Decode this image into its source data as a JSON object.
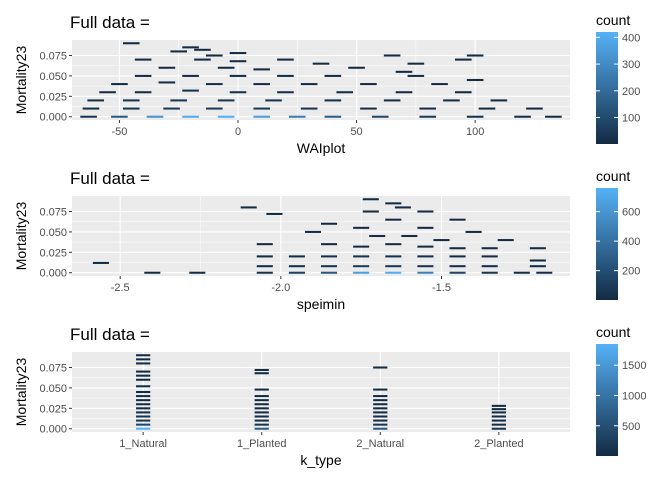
{
  "chart_data": [
    {
      "type": "heatmap",
      "title": "Full data =",
      "xlabel": "WAIplot",
      "ylabel": "Mortality23",
      "xlim": [
        -70,
        140
      ],
      "ylim": [
        -0.004,
        0.094
      ],
      "xticks": [
        -50,
        0,
        50,
        100
      ],
      "xtick_labels": [
        "-50",
        "0",
        "50",
        "100"
      ],
      "yticks": [
        0.0,
        0.025,
        0.05,
        0.075
      ],
      "ytick_labels": [
        "0.000",
        "0.025",
        "0.050",
        "0.075"
      ],
      "legend": {
        "title": "count",
        "min": 1,
        "max": 420,
        "ticks": [
          100,
          200,
          300,
          400
        ],
        "tick_labels": [
          "100",
          "200",
          "300",
          "400"
        ],
        "placement": "right"
      },
      "bin_width": 7,
      "bin_height": 0.0025,
      "cells": [
        {
          "x": -45,
          "y": 0.09,
          "count": 2
        },
        {
          "x": -20,
          "y": 0.085,
          "count": 2
        },
        {
          "x": -15,
          "y": 0.082,
          "count": 3
        },
        {
          "x": -25,
          "y": 0.08,
          "count": 2
        },
        {
          "x": -10,
          "y": 0.075,
          "count": 3
        },
        {
          "x": 0,
          "y": 0.078,
          "count": 2
        },
        {
          "x": -40,
          "y": 0.07,
          "count": 2
        },
        {
          "x": -15,
          "y": 0.07,
          "count": 3
        },
        {
          "x": 0,
          "y": 0.068,
          "count": 2
        },
        {
          "x": 20,
          "y": 0.07,
          "count": 2
        },
        {
          "x": 35,
          "y": 0.065,
          "count": 2
        },
        {
          "x": 65,
          "y": 0.075,
          "count": 2
        },
        {
          "x": 75,
          "y": 0.065,
          "count": 2
        },
        {
          "x": 95,
          "y": 0.07,
          "count": 2
        },
        {
          "x": 100,
          "y": 0.075,
          "count": 2
        },
        {
          "x": -30,
          "y": 0.06,
          "count": 4
        },
        {
          "x": -5,
          "y": 0.06,
          "count": 5
        },
        {
          "x": 10,
          "y": 0.058,
          "count": 3
        },
        {
          "x": 50,
          "y": 0.06,
          "count": 3
        },
        {
          "x": 70,
          "y": 0.055,
          "count": 2
        },
        {
          "x": -40,
          "y": 0.05,
          "count": 5
        },
        {
          "x": -20,
          "y": 0.05,
          "count": 8
        },
        {
          "x": 0,
          "y": 0.05,
          "count": 10
        },
        {
          "x": 20,
          "y": 0.05,
          "count": 6
        },
        {
          "x": 40,
          "y": 0.05,
          "count": 4
        },
        {
          "x": 75,
          "y": 0.05,
          "count": 3
        },
        {
          "x": 100,
          "y": 0.045,
          "count": 2
        },
        {
          "x": -50,
          "y": 0.04,
          "count": 4
        },
        {
          "x": -30,
          "y": 0.042,
          "count": 10
        },
        {
          "x": -10,
          "y": 0.04,
          "count": 15
        },
        {
          "x": 10,
          "y": 0.04,
          "count": 12
        },
        {
          "x": 30,
          "y": 0.04,
          "count": 8
        },
        {
          "x": 55,
          "y": 0.04,
          "count": 5
        },
        {
          "x": 85,
          "y": 0.04,
          "count": 3
        },
        {
          "x": -55,
          "y": 0.03,
          "count": 8
        },
        {
          "x": -40,
          "y": 0.03,
          "count": 15
        },
        {
          "x": -20,
          "y": 0.032,
          "count": 20
        },
        {
          "x": 0,
          "y": 0.03,
          "count": 25
        },
        {
          "x": 20,
          "y": 0.03,
          "count": 18
        },
        {
          "x": 45,
          "y": 0.03,
          "count": 10
        },
        {
          "x": 70,
          "y": 0.03,
          "count": 6
        },
        {
          "x": 95,
          "y": 0.03,
          "count": 3
        },
        {
          "x": -60,
          "y": 0.02,
          "count": 10
        },
        {
          "x": -45,
          "y": 0.02,
          "count": 25
        },
        {
          "x": -25,
          "y": 0.02,
          "count": 35
        },
        {
          "x": -5,
          "y": 0.02,
          "count": 40
        },
        {
          "x": 15,
          "y": 0.02,
          "count": 30
        },
        {
          "x": 40,
          "y": 0.02,
          "count": 18
        },
        {
          "x": 65,
          "y": 0.02,
          "count": 10
        },
        {
          "x": 90,
          "y": 0.02,
          "count": 5
        },
        {
          "x": 110,
          "y": 0.02,
          "count": 3
        },
        {
          "x": -62,
          "y": 0.01,
          "count": 15
        },
        {
          "x": -45,
          "y": 0.01,
          "count": 40
        },
        {
          "x": -28,
          "y": 0.01,
          "count": 55
        },
        {
          "x": -10,
          "y": 0.01,
          "count": 60
        },
        {
          "x": 10,
          "y": 0.01,
          "count": 50
        },
        {
          "x": 30,
          "y": 0.01,
          "count": 35
        },
        {
          "x": 55,
          "y": 0.01,
          "count": 20
        },
        {
          "x": 80,
          "y": 0.01,
          "count": 12
        },
        {
          "x": 105,
          "y": 0.01,
          "count": 6
        },
        {
          "x": 125,
          "y": 0.01,
          "count": 3
        },
        {
          "x": -63,
          "y": 0.0,
          "count": 40
        },
        {
          "x": -50,
          "y": 0.0,
          "count": 150
        },
        {
          "x": -35,
          "y": 0.0,
          "count": 330
        },
        {
          "x": -20,
          "y": 0.0,
          "count": 400
        },
        {
          "x": -5,
          "y": 0.0,
          "count": 410
        },
        {
          "x": 10,
          "y": 0.0,
          "count": 360
        },
        {
          "x": 25,
          "y": 0.0,
          "count": 260
        },
        {
          "x": 40,
          "y": 0.0,
          "count": 160
        },
        {
          "x": 60,
          "y": 0.0,
          "count": 90
        },
        {
          "x": 80,
          "y": 0.0,
          "count": 50
        },
        {
          "x": 100,
          "y": 0.0,
          "count": 25
        },
        {
          "x": 120,
          "y": 0.0,
          "count": 10
        },
        {
          "x": 133,
          "y": 0.0,
          "count": 3
        }
      ]
    },
    {
      "type": "heatmap",
      "title": "Full data =",
      "xlabel": "speimin",
      "ylabel": "Mortality23",
      "xlim": [
        -2.65,
        -1.1
      ],
      "ylim": [
        -0.004,
        0.094
      ],
      "xticks": [
        -2.5,
        -2.0,
        -1.5
      ],
      "xtick_labels": [
        "-2.5",
        "-2.0",
        "-1.5"
      ],
      "yticks": [
        0.0,
        0.025,
        0.05,
        0.075
      ],
      "ytick_labels": [
        "0.000",
        "0.025",
        "0.050",
        "0.075"
      ],
      "legend": {
        "title": "count",
        "min": 1,
        "max": 760,
        "ticks": [
          200,
          400,
          600
        ],
        "tick_labels": [
          "200",
          "400",
          "600"
        ],
        "placement": "right"
      },
      "bin_width": 0.05,
      "bin_height": 0.0025,
      "cells": [
        {
          "x": -2.56,
          "y": 0.012,
          "count": 2
        },
        {
          "x": -2.4,
          "y": 0.0,
          "count": 3
        },
        {
          "x": -2.26,
          "y": 0.0,
          "count": 3
        },
        {
          "x": -2.1,
          "y": 0.08,
          "count": 2
        },
        {
          "x": -2.02,
          "y": 0.072,
          "count": 2
        },
        {
          "x": -1.72,
          "y": 0.09,
          "count": 2
        },
        {
          "x": -1.65,
          "y": 0.085,
          "count": 2
        },
        {
          "x": -1.62,
          "y": 0.08,
          "count": 2
        },
        {
          "x": -1.72,
          "y": 0.075,
          "count": 3
        },
        {
          "x": -1.55,
          "y": 0.075,
          "count": 2
        },
        {
          "x": -1.65,
          "y": 0.065,
          "count": 4
        },
        {
          "x": -1.45,
          "y": 0.065,
          "count": 2
        },
        {
          "x": -1.85,
          "y": 0.06,
          "count": 2
        },
        {
          "x": -1.75,
          "y": 0.055,
          "count": 4
        },
        {
          "x": -1.55,
          "y": 0.055,
          "count": 3
        },
        {
          "x": -1.4,
          "y": 0.05,
          "count": 2
        },
        {
          "x": -1.9,
          "y": 0.05,
          "count": 2
        },
        {
          "x": -1.7,
          "y": 0.045,
          "count": 8
        },
        {
          "x": -1.6,
          "y": 0.045,
          "count": 6
        },
        {
          "x": -1.5,
          "y": 0.04,
          "count": 4
        },
        {
          "x": -1.3,
          "y": 0.04,
          "count": 2
        },
        {
          "x": -2.05,
          "y": 0.035,
          "count": 2
        },
        {
          "x": -1.85,
          "y": 0.035,
          "count": 6
        },
        {
          "x": -1.75,
          "y": 0.032,
          "count": 15
        },
        {
          "x": -1.65,
          "y": 0.035,
          "count": 12
        },
        {
          "x": -1.55,
          "y": 0.032,
          "count": 10
        },
        {
          "x": -1.45,
          "y": 0.03,
          "count": 5
        },
        {
          "x": -1.35,
          "y": 0.03,
          "count": 3
        },
        {
          "x": -1.2,
          "y": 0.03,
          "count": 2
        },
        {
          "x": -2.05,
          "y": 0.02,
          "count": 6
        },
        {
          "x": -1.95,
          "y": 0.02,
          "count": 12
        },
        {
          "x": -1.85,
          "y": 0.02,
          "count": 25
        },
        {
          "x": -1.75,
          "y": 0.02,
          "count": 40
        },
        {
          "x": -1.65,
          "y": 0.02,
          "count": 35
        },
        {
          "x": -1.55,
          "y": 0.02,
          "count": 25
        },
        {
          "x": -1.45,
          "y": 0.02,
          "count": 12
        },
        {
          "x": -1.35,
          "y": 0.02,
          "count": 6
        },
        {
          "x": -1.2,
          "y": 0.015,
          "count": 3
        },
        {
          "x": -2.05,
          "y": 0.008,
          "count": 15
        },
        {
          "x": -1.95,
          "y": 0.008,
          "count": 30
        },
        {
          "x": -1.85,
          "y": 0.008,
          "count": 60
        },
        {
          "x": -1.75,
          "y": 0.008,
          "count": 90
        },
        {
          "x": -1.65,
          "y": 0.008,
          "count": 80
        },
        {
          "x": -1.55,
          "y": 0.008,
          "count": 55
        },
        {
          "x": -1.45,
          "y": 0.008,
          "count": 25
        },
        {
          "x": -1.35,
          "y": 0.008,
          "count": 12
        },
        {
          "x": -1.2,
          "y": 0.008,
          "count": 4
        },
        {
          "x": -2.05,
          "y": 0.0,
          "count": 40
        },
        {
          "x": -1.95,
          "y": 0.0,
          "count": 120
        },
        {
          "x": -1.85,
          "y": 0.0,
          "count": 250
        },
        {
          "x": -1.75,
          "y": 0.0,
          "count": 650
        },
        {
          "x": -1.65,
          "y": 0.0,
          "count": 740
        },
        {
          "x": -1.55,
          "y": 0.0,
          "count": 480
        },
        {
          "x": -1.45,
          "y": 0.0,
          "count": 150
        },
        {
          "x": -1.35,
          "y": 0.0,
          "count": 60
        },
        {
          "x": -1.25,
          "y": 0.0,
          "count": 20
        },
        {
          "x": -1.18,
          "y": 0.0,
          "count": 8
        }
      ]
    },
    {
      "type": "heatmap",
      "title": "Full data =",
      "xlabel": "k_type",
      "ylabel": "Mortality23",
      "categories": [
        "1_Natural",
        "1_Planted",
        "2_Natural",
        "2_Planted"
      ],
      "ylim": [
        -0.004,
        0.094
      ],
      "yticks": [
        0.0,
        0.025,
        0.05,
        0.075
      ],
      "ytick_labels": [
        "0.000",
        "0.025",
        "0.050",
        "0.075"
      ],
      "legend": {
        "title": "count",
        "min": 1,
        "max": 1850,
        "ticks": [
          500,
          1000,
          1500
        ],
        "tick_labels": [
          "500",
          "1000",
          "1500"
        ],
        "placement": "right"
      },
      "bin_width": 0.12,
      "bin_height": 0.0025,
      "cells": [
        {
          "x": 1,
          "y": 0.09,
          "count": 3
        },
        {
          "x": 1,
          "y": 0.085,
          "count": 4
        },
        {
          "x": 1,
          "y": 0.08,
          "count": 5
        },
        {
          "x": 1,
          "y": 0.07,
          "count": 6
        },
        {
          "x": 1,
          "y": 0.065,
          "count": 5
        },
        {
          "x": 1,
          "y": 0.06,
          "count": 8
        },
        {
          "x": 1,
          "y": 0.052,
          "count": 10
        },
        {
          "x": 1,
          "y": 0.045,
          "count": 15
        },
        {
          "x": 1,
          "y": 0.04,
          "count": 18
        },
        {
          "x": 1,
          "y": 0.035,
          "count": 25
        },
        {
          "x": 1,
          "y": 0.03,
          "count": 35
        },
        {
          "x": 1,
          "y": 0.025,
          "count": 45
        },
        {
          "x": 1,
          "y": 0.02,
          "count": 70
        },
        {
          "x": 1,
          "y": 0.015,
          "count": 110
        },
        {
          "x": 1,
          "y": 0.01,
          "count": 200
        },
        {
          "x": 1,
          "y": 0.005,
          "count": 400
        },
        {
          "x": 1,
          "y": 0.0,
          "count": 1850
        },
        {
          "x": 2,
          "y": 0.072,
          "count": 3
        },
        {
          "x": 2,
          "y": 0.068,
          "count": 2
        },
        {
          "x": 2,
          "y": 0.048,
          "count": 4
        },
        {
          "x": 2,
          "y": 0.04,
          "count": 6
        },
        {
          "x": 2,
          "y": 0.035,
          "count": 8
        },
        {
          "x": 2,
          "y": 0.03,
          "count": 10
        },
        {
          "x": 2,
          "y": 0.025,
          "count": 14
        },
        {
          "x": 2,
          "y": 0.02,
          "count": 22
        },
        {
          "x": 2,
          "y": 0.015,
          "count": 35
        },
        {
          "x": 2,
          "y": 0.01,
          "count": 60
        },
        {
          "x": 2,
          "y": 0.005,
          "count": 120
        },
        {
          "x": 2,
          "y": 0.0,
          "count": 700
        },
        {
          "x": 3,
          "y": 0.075,
          "count": 2
        },
        {
          "x": 3,
          "y": 0.048,
          "count": 3
        },
        {
          "x": 3,
          "y": 0.04,
          "count": 5
        },
        {
          "x": 3,
          "y": 0.035,
          "count": 7
        },
        {
          "x": 3,
          "y": 0.03,
          "count": 10
        },
        {
          "x": 3,
          "y": 0.025,
          "count": 14
        },
        {
          "x": 3,
          "y": 0.02,
          "count": 20
        },
        {
          "x": 3,
          "y": 0.015,
          "count": 30
        },
        {
          "x": 3,
          "y": 0.01,
          "count": 50
        },
        {
          "x": 3,
          "y": 0.005,
          "count": 110
        },
        {
          "x": 3,
          "y": 0.0,
          "count": 650
        },
        {
          "x": 4,
          "y": 0.028,
          "count": 2
        },
        {
          "x": 4,
          "y": 0.024,
          "count": 3
        },
        {
          "x": 4,
          "y": 0.02,
          "count": 4
        },
        {
          "x": 4,
          "y": 0.015,
          "count": 6
        },
        {
          "x": 4,
          "y": 0.01,
          "count": 10
        },
        {
          "x": 4,
          "y": 0.005,
          "count": 20
        },
        {
          "x": 4,
          "y": 0.0,
          "count": 120
        }
      ]
    }
  ],
  "colors": {
    "panel_bg": "#ebebeb",
    "grid_major": "#ffffff",
    "gradient_low": "#132b43",
    "gradient_high": "#56b1f7",
    "tick_text": "#4d4d4d",
    "tick_mark": "#333333"
  }
}
